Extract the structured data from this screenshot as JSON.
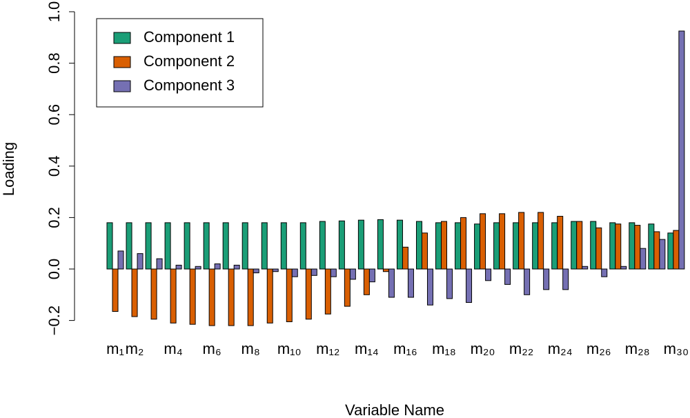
{
  "chart_data": {
    "type": "bar",
    "y_label": "Loading",
    "x_label": "Variable Name",
    "categories": [
      "m₁",
      "m₂",
      null,
      "m₄",
      null,
      "m₆",
      null,
      "m₈",
      null,
      "m₁₀",
      null,
      "m₁₂",
      null,
      "m₁₄",
      null,
      "m₁₆",
      null,
      "m₁₈",
      null,
      "m₂₀",
      null,
      "m₂₂",
      null,
      "m₂₄",
      null,
      "m₂₆",
      null,
      "m₂₈",
      null,
      "m₃₀"
    ],
    "series": [
      {
        "name": "Component 1",
        "color": "#1b9e77",
        "values": [
          0.18,
          0.18,
          0.18,
          0.18,
          0.18,
          0.18,
          0.18,
          0.18,
          0.18,
          0.18,
          0.18,
          0.185,
          0.187,
          0.19,
          0.192,
          0.19,
          0.185,
          0.18,
          0.18,
          0.175,
          0.18,
          0.18,
          0.18,
          0.18,
          0.185,
          0.185,
          0.18,
          0.18,
          0.175,
          0.14
        ]
      },
      {
        "name": "Component 2",
        "color": "#d95f02",
        "values": [
          -0.165,
          -0.185,
          -0.195,
          -0.21,
          -0.215,
          -0.22,
          -0.22,
          -0.22,
          -0.21,
          -0.205,
          -0.195,
          -0.175,
          -0.145,
          -0.1,
          -0.01,
          0.085,
          0.14,
          0.185,
          0.2,
          0.215,
          0.215,
          0.22,
          0.22,
          0.205,
          0.185,
          0.16,
          0.175,
          0.17,
          0.145,
          0.15
        ]
      },
      {
        "name": "Component 3",
        "color": "#7570b3",
        "values": [
          0.07,
          0.06,
          0.04,
          0.015,
          0.01,
          0.02,
          0.015,
          -0.015,
          -0.01,
          -0.03,
          -0.025,
          -0.03,
          -0.04,
          -0.05,
          -0.11,
          -0.11,
          -0.14,
          -0.115,
          -0.13,
          -0.045,
          -0.06,
          -0.1,
          -0.08,
          -0.08,
          0.01,
          -0.03,
          0.01,
          0.08,
          0.115,
          0.925
        ]
      }
    ],
    "ylim": [
      -0.2,
      1.0
    ],
    "yticks": [
      {
        "value": -0.2,
        "label": "−0.2"
      },
      {
        "value": 0,
        "label": "0.0"
      },
      0.2,
      0.4,
      0.6,
      0.8,
      {
        "value": 1,
        "label": "1.0"
      }
    ],
    "legend": "top-left"
  }
}
